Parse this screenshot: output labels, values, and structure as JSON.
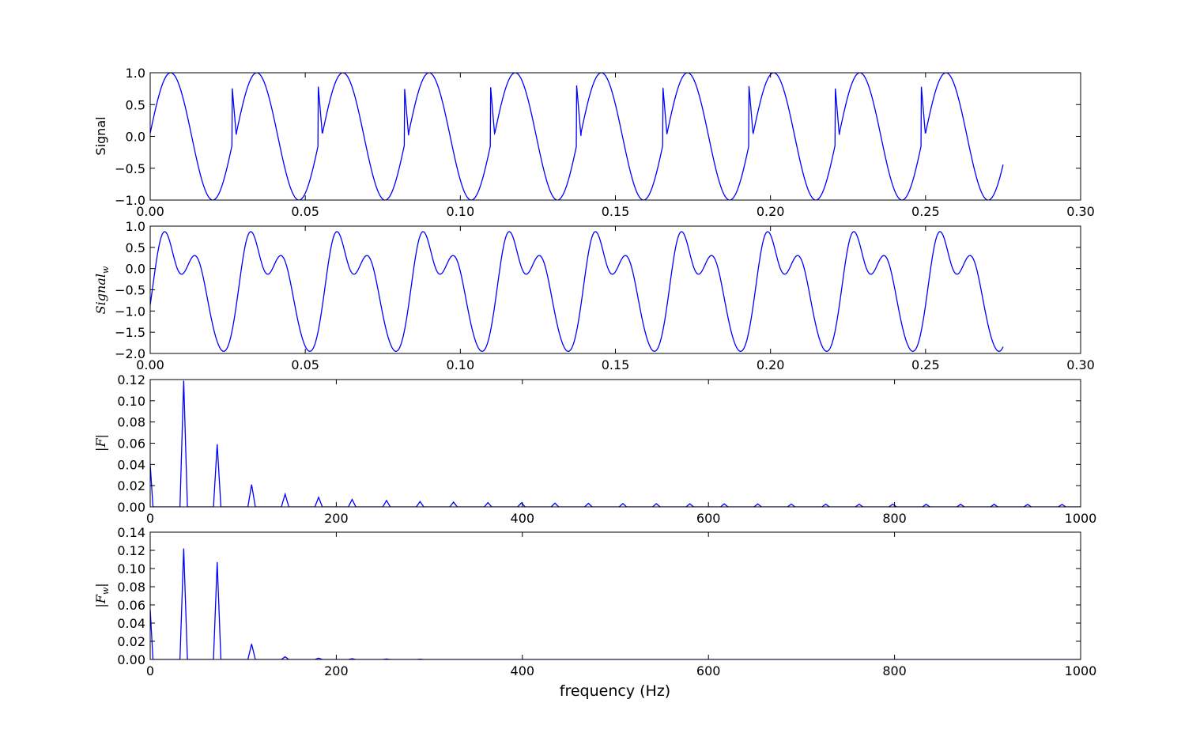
{
  "chart_data": [
    {
      "type": "line",
      "ylabel": "Signal",
      "xlabel": "",
      "xlim": [
        0,
        0.3
      ],
      "ylim": [
        -1.0,
        1.0
      ],
      "xticks": [
        "0.00",
        "0.05",
        "0.10",
        "0.15",
        "0.20",
        "0.25",
        "0.30"
      ],
      "yticks": [
        "1.0",
        "0.5",
        "0.0",
        "−0.5",
        "−1.0"
      ],
      "series": [
        {
          "color": "#0000ff",
          "x_range": [
            0,
            0.275
          ],
          "description_values": "sin(2*pi*36*t) with hard reset to 0 at every 1/36 s period boundary",
          "frequency_hz": 36,
          "amplitude": 1.0
        }
      ]
    },
    {
      "type": "line",
      "ylabel": "Signal_w",
      "xlabel": "",
      "xlim": [
        0,
        0.3
      ],
      "ylim": [
        -2.0,
        1.0
      ],
      "xticks": [
        "0.00",
        "0.05",
        "0.10",
        "0.15",
        "0.20",
        "0.25",
        "0.30"
      ],
      "yticks": [
        "1.0",
        "0.5",
        "0.0",
        "−0.5",
        "−1.0",
        "−1.5",
        "−2.0"
      ],
      "series": [
        {
          "color": "#0000ff",
          "x_range": [
            0,
            0.275
          ],
          "frequency_hz": 36,
          "peak_max": 0.87,
          "secondary_peak": 0.37,
          "trough_min": -1.95
        }
      ]
    },
    {
      "type": "line",
      "ylabel": "|F|",
      "xlabel": "",
      "xlim": [
        0,
        1000
      ],
      "ylim": [
        0,
        0.12
      ],
      "xticks": [
        "0",
        "200",
        "400",
        "600",
        "800",
        "1000"
      ],
      "yticks": [
        "0.12",
        "0.10",
        "0.08",
        "0.06",
        "0.04",
        "0.02",
        "0.00"
      ],
      "series": [
        {
          "color": "#0000ff",
          "peaks_x": [
            0,
            36,
            72,
            109,
            145,
            181,
            217,
            254,
            290,
            326,
            363,
            399,
            435,
            471,
            508,
            544,
            580,
            617,
            653,
            689,
            726,
            762,
            798,
            834,
            871,
            907,
            943,
            980
          ],
          "peaks_y": [
            0.04,
            0.119,
            0.059,
            0.021,
            0.012,
            0.009,
            0.007,
            0.006,
            0.005,
            0.0045,
            0.004,
            0.0038,
            0.0035,
            0.0033,
            0.0031,
            0.003,
            0.0029,
            0.0028,
            0.0027,
            0.0026,
            0.0026,
            0.0025,
            0.0025,
            0.0024,
            0.0024,
            0.0024,
            0.0023,
            0.0023
          ]
        }
      ]
    },
    {
      "type": "line",
      "ylabel": "|F_w|",
      "xlabel": "frequency (Hz)",
      "xlim": [
        0,
        1000
      ],
      "ylim": [
        0,
        0.14
      ],
      "xticks": [
        "0",
        "200",
        "400",
        "600",
        "800",
        "1000"
      ],
      "yticks": [
        "0.14",
        "0.12",
        "0.10",
        "0.08",
        "0.06",
        "0.04",
        "0.02",
        "0.00"
      ],
      "series": [
        {
          "color": "#0000ff",
          "peaks_x": [
            0,
            36,
            72,
            109,
            145,
            181,
            217,
            254,
            290
          ],
          "peaks_y": [
            0.055,
            0.122,
            0.107,
            0.017,
            0.003,
            0.0015,
            0.0008,
            0.0005,
            0.0003
          ]
        }
      ]
    }
  ],
  "labels": {
    "panel1_ylabel": "Signal",
    "panel2_ylabel_base": "Signal",
    "panel2_ylabel_sub": "w",
    "panel3_ylabel": "|F|",
    "panel4_ylabel_base": "|F",
    "panel4_ylabel_sub": "w",
    "panel4_ylabel_end": "|",
    "xlabel": "frequency (Hz)"
  }
}
